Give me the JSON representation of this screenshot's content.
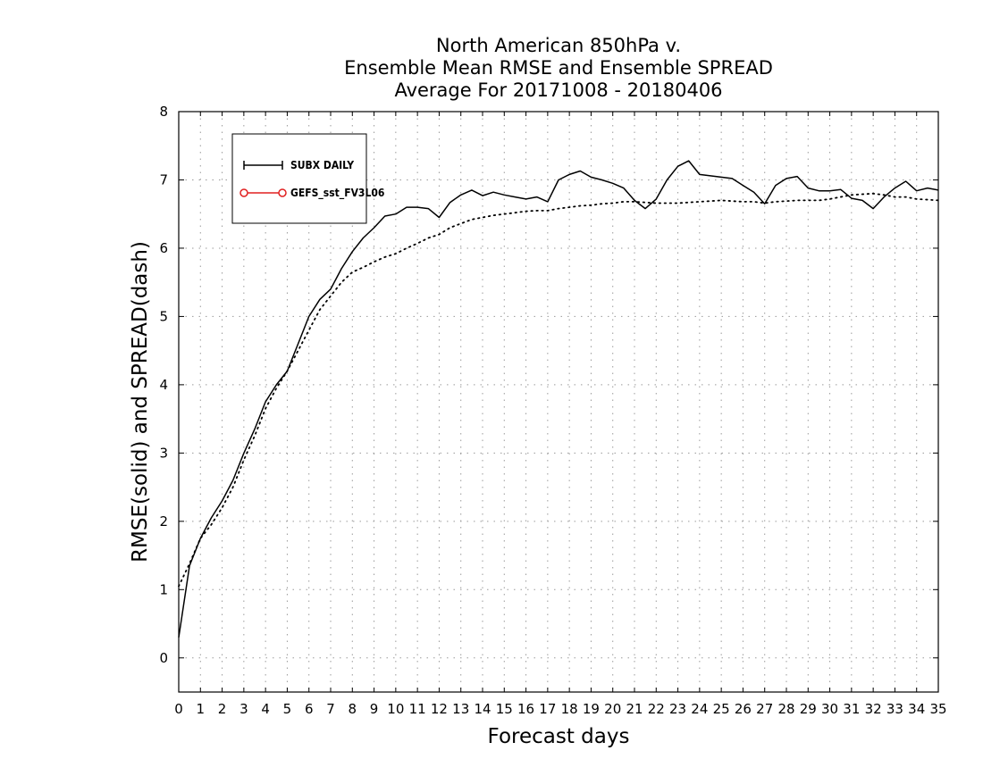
{
  "chart_data": {
    "type": "line",
    "title": [
      "North American 850hPa v.",
      "Ensemble Mean RMSE and Ensemble SPREAD",
      "Average For 20171008 - 20180406"
    ],
    "xlabel": "Forecast days",
    "ylabel": "RMSE(solid) and SPREAD(dash)",
    "xlim": [
      0,
      35
    ],
    "ylim": [
      -0.5,
      8
    ],
    "x_ticks": [
      0,
      1,
      2,
      3,
      4,
      5,
      6,
      7,
      8,
      9,
      10,
      11,
      12,
      13,
      14,
      15,
      16,
      17,
      18,
      19,
      20,
      21,
      22,
      23,
      24,
      25,
      26,
      27,
      28,
      29,
      30,
      31,
      32,
      33,
      34,
      35
    ],
    "y_ticks": [
      0,
      1,
      2,
      3,
      4,
      5,
      6,
      7,
      8
    ],
    "grid": true,
    "legend": {
      "placement": "top-left",
      "entries": [
        {
          "label": "SUBX DAILY",
          "color": "#000000",
          "marker": "plus"
        },
        {
          "label": "GEFS_sst_FV3L06",
          "color": "#e02020",
          "marker": "circle"
        }
      ]
    },
    "series": [
      {
        "name": "RMSE",
        "style": "solid",
        "color": "#000000",
        "x": [
          0,
          0.5,
          1,
          1.5,
          2,
          2.5,
          3,
          3.5,
          4,
          4.5,
          5,
          5.5,
          6,
          6.5,
          7,
          7.5,
          8,
          8.5,
          9,
          9.5,
          10,
          10.5,
          11,
          11.5,
          12,
          12.5,
          13,
          13.5,
          14,
          14.5,
          15,
          15.5,
          16,
          16.5,
          17,
          17.5,
          18,
          18.5,
          19,
          19.5,
          20,
          20.5,
          21,
          21.5,
          22,
          22.5,
          23,
          23.5,
          24,
          24.5,
          25,
          25.5,
          26,
          26.5,
          27,
          27.5,
          28,
          28.5,
          29,
          29.5,
          30,
          30.5,
          31,
          31.5,
          32,
          32.5,
          33,
          33.5,
          34,
          34.5,
          35
        ],
        "values": [
          0.3,
          1.35,
          1.75,
          2.05,
          2.3,
          2.6,
          3.0,
          3.35,
          3.75,
          4.0,
          4.2,
          4.6,
          5.0,
          5.25,
          5.4,
          5.7,
          5.95,
          6.15,
          6.3,
          6.47,
          6.5,
          6.6,
          6.6,
          6.58,
          6.45,
          6.67,
          6.78,
          6.85,
          6.77,
          6.82,
          6.78,
          6.75,
          6.72,
          6.75,
          6.68,
          7.0,
          7.08,
          7.13,
          7.04,
          7.0,
          6.95,
          6.88,
          6.7,
          6.58,
          6.72,
          7.0,
          7.2,
          7.28,
          7.08,
          7.06,
          7.04,
          7.02,
          6.92,
          6.82,
          6.65,
          6.92,
          7.02,
          7.05,
          6.88,
          6.84,
          6.84,
          6.86,
          6.73,
          6.7,
          6.58,
          6.75,
          6.88,
          6.98,
          6.84,
          6.88,
          6.85
        ]
      },
      {
        "name": "SPREAD",
        "style": "dotted",
        "color": "#000000",
        "x": [
          0,
          0.5,
          1,
          1.5,
          2,
          2.5,
          3,
          3.5,
          4,
          4.5,
          5,
          5.5,
          6,
          6.5,
          7,
          7.5,
          8,
          8.5,
          9,
          9.5,
          10,
          10.5,
          11,
          11.5,
          12,
          12.5,
          13,
          13.5,
          14,
          14.5,
          15,
          15.5,
          16,
          16.5,
          17,
          17.5,
          18,
          18.5,
          19,
          19.5,
          20,
          20.5,
          21,
          21.5,
          22,
          22.5,
          23,
          23.5,
          24,
          24.5,
          25,
          25.5,
          26,
          26.5,
          27,
          27.5,
          28,
          28.5,
          29,
          29.5,
          30,
          30.5,
          31,
          31.5,
          32,
          32.5,
          33,
          33.5,
          34,
          34.5,
          35
        ],
        "values": [
          1.05,
          1.38,
          1.75,
          1.95,
          2.2,
          2.5,
          2.9,
          3.25,
          3.65,
          3.95,
          4.2,
          4.5,
          4.8,
          5.1,
          5.3,
          5.5,
          5.65,
          5.72,
          5.8,
          5.87,
          5.92,
          6.0,
          6.07,
          6.15,
          6.2,
          6.3,
          6.36,
          6.42,
          6.45,
          6.48,
          6.5,
          6.52,
          6.54,
          6.55,
          6.55,
          6.58,
          6.6,
          6.62,
          6.63,
          6.65,
          6.66,
          6.68,
          6.68,
          6.67,
          6.66,
          6.66,
          6.66,
          6.67,
          6.68,
          6.69,
          6.7,
          6.69,
          6.68,
          6.68,
          6.66,
          6.68,
          6.69,
          6.7,
          6.7,
          6.7,
          6.72,
          6.75,
          6.78,
          6.79,
          6.8,
          6.78,
          6.75,
          6.75,
          6.72,
          6.71,
          6.7
        ]
      }
    ]
  }
}
